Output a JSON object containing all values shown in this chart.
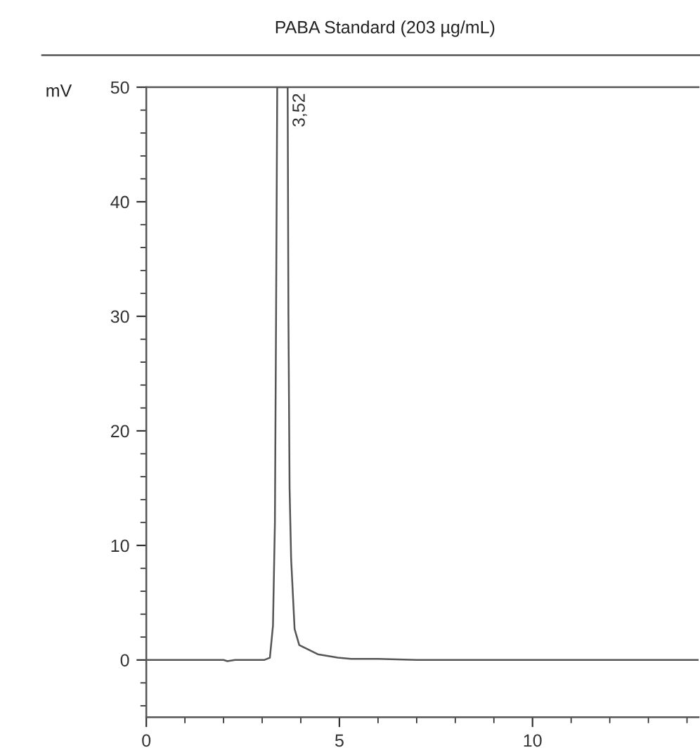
{
  "chart_data": {
    "type": "line",
    "title": "PABA Standard (203 µg/mL)",
    "ylabel": "mV",
    "x": [
      0,
      1.0,
      2.0,
      2.1,
      2.3,
      3.05,
      3.2,
      3.28,
      3.33,
      3.36,
      3.39,
      3.66,
      3.68,
      3.71,
      3.75,
      3.84,
      3.96,
      4.44,
      4.96,
      5.3,
      6.0,
      7.0,
      10.0,
      14.3
    ],
    "series": [
      {
        "color": "#555555",
        "values": [
          0,
          0,
          0,
          -0.1,
          0,
          0,
          0.2,
          3,
          12,
          30,
          50,
          50,
          30,
          15,
          8.8,
          2.7,
          1.3,
          0.5,
          0.2,
          0.1,
          0.1,
          0,
          0,
          0
        ]
      }
    ],
    "xlim": [
      0,
      14.3
    ],
    "xticks": [
      0,
      5,
      10
    ],
    "ylim": [
      -5,
      50
    ],
    "yticks": [
      0,
      10,
      20,
      30,
      40,
      50
    ],
    "annotations": [
      {
        "text": "3,52",
        "x": 3.52,
        "y": 50
      }
    ],
    "grid": false,
    "legend": false,
    "marker": "none",
    "line_style": "solid"
  }
}
